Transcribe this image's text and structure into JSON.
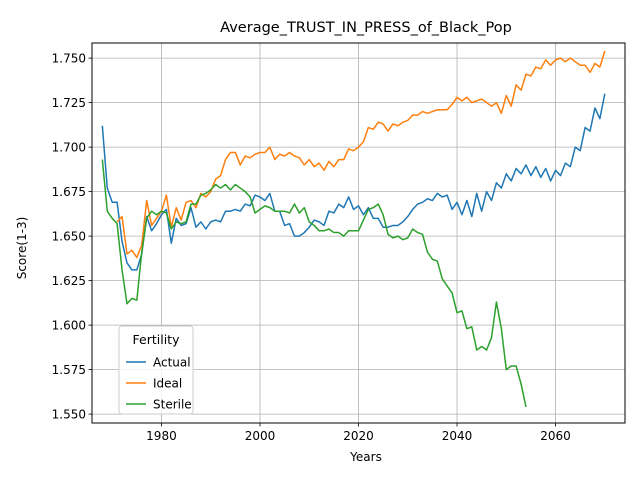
{
  "chart_data": {
    "type": "line",
    "title": "Average_TRUST_IN_PRESS_of_Black_Pop",
    "xlabel": "Years",
    "ylabel": "Score(1-3)",
    "xlim": [
      1965.9,
      2074.1
    ],
    "ylim": [
      1.545,
      1.7585
    ],
    "x_ticks": [
      1980,
      2000,
      2020,
      2040,
      2060
    ],
    "y_ticks": [
      1.55,
      1.575,
      1.6,
      1.625,
      1.65,
      1.675,
      1.7,
      1.725,
      1.75
    ],
    "grid": true,
    "legend": {
      "title": "Fertility",
      "position": "lower-left"
    },
    "series": [
      {
        "name": "Actual",
        "color": "#1f77b4",
        "points": [
          [
            1968,
            1.712
          ],
          [
            1969,
            1.677
          ],
          [
            1970,
            1.669
          ],
          [
            1971,
            1.669
          ],
          [
            1972,
            1.647
          ],
          [
            1973,
            1.635
          ],
          [
            1974,
            1.631
          ],
          [
            1975,
            1.631
          ],
          [
            1976,
            1.64
          ],
          [
            1977,
            1.661
          ],
          [
            1978,
            1.653
          ],
          [
            1979,
            1.657
          ],
          [
            1980,
            1.662
          ],
          [
            1981,
            1.665
          ],
          [
            1982,
            1.646
          ],
          [
            1983,
            1.66
          ],
          [
            1984,
            1.656
          ],
          [
            1985,
            1.657
          ],
          [
            1986,
            1.666
          ],
          [
            1987,
            1.655
          ],
          [
            1988,
            1.658
          ],
          [
            1989,
            1.654
          ],
          [
            1990,
            1.658
          ],
          [
            1991,
            1.659
          ],
          [
            1992,
            1.658
          ],
          [
            1993,
            1.664
          ],
          [
            1994,
            1.664
          ],
          [
            1995,
            1.665
          ],
          [
            1996,
            1.664
          ],
          [
            1997,
            1.668
          ],
          [
            1998,
            1.667
          ],
          [
            1999,
            1.673
          ],
          [
            2000,
            1.672
          ],
          [
            2001,
            1.67
          ],
          [
            2002,
            1.674
          ],
          [
            2003,
            1.664
          ],
          [
            2004,
            1.664
          ],
          [
            2005,
            1.656
          ],
          [
            2006,
            1.657
          ],
          [
            2007,
            1.65
          ],
          [
            2008,
            1.65
          ],
          [
            2009,
            1.652
          ],
          [
            2010,
            1.655
          ],
          [
            2011,
            1.659
          ],
          [
            2012,
            1.658
          ],
          [
            2013,
            1.656
          ],
          [
            2014,
            1.664
          ],
          [
            2015,
            1.663
          ],
          [
            2016,
            1.668
          ],
          [
            2017,
            1.666
          ],
          [
            2018,
            1.672
          ],
          [
            2019,
            1.665
          ],
          [
            2020,
            1.667
          ],
          [
            2021,
            1.662
          ],
          [
            2022,
            1.666
          ],
          [
            2023,
            1.66
          ],
          [
            2024,
            1.66
          ],
          [
            2025,
            1.655
          ],
          [
            2026,
            1.655
          ],
          [
            2027,
            1.656
          ],
          [
            2028,
            1.656
          ],
          [
            2029,
            1.658
          ],
          [
            2030,
            1.661
          ],
          [
            2031,
            1.665
          ],
          [
            2032,
            1.668
          ],
          [
            2033,
            1.669
          ],
          [
            2034,
            1.671
          ],
          [
            2035,
            1.67
          ],
          [
            2036,
            1.674
          ],
          [
            2037,
            1.672
          ],
          [
            2038,
            1.673
          ],
          [
            2039,
            1.665
          ],
          [
            2040,
            1.669
          ],
          [
            2041,
            1.662
          ],
          [
            2042,
            1.67
          ],
          [
            2043,
            1.661
          ],
          [
            2044,
            1.674
          ],
          [
            2045,
            1.664
          ],
          [
            2046,
            1.675
          ],
          [
            2047,
            1.67
          ],
          [
            2048,
            1.68
          ],
          [
            2049,
            1.677
          ],
          [
            2050,
            1.685
          ],
          [
            2051,
            1.681
          ],
          [
            2052,
            1.688
          ],
          [
            2053,
            1.685
          ],
          [
            2054,
            1.69
          ],
          [
            2055,
            1.684
          ],
          [
            2056,
            1.689
          ],
          [
            2057,
            1.683
          ],
          [
            2058,
            1.688
          ],
          [
            2059,
            1.681
          ],
          [
            2060,
            1.687
          ],
          [
            2061,
            1.684
          ],
          [
            2062,
            1.691
          ],
          [
            2063,
            1.689
          ],
          [
            2064,
            1.7
          ],
          [
            2065,
            1.698
          ],
          [
            2066,
            1.711
          ],
          [
            2067,
            1.709
          ],
          [
            2068,
            1.722
          ],
          [
            2069,
            1.716
          ],
          [
            2070,
            1.73
          ]
        ]
      },
      {
        "name": "Ideal",
        "color": "#ff7f0e",
        "points": [
          [
            1971,
            1.658
          ],
          [
            1972,
            1.661
          ],
          [
            1973,
            1.64
          ],
          [
            1974,
            1.642
          ],
          [
            1975,
            1.638
          ],
          [
            1976,
            1.645
          ],
          [
            1977,
            1.67
          ],
          [
            1978,
            1.656
          ],
          [
            1979,
            1.66
          ],
          [
            1980,
            1.664
          ],
          [
            1981,
            1.673
          ],
          [
            1982,
            1.655
          ],
          [
            1983,
            1.666
          ],
          [
            1984,
            1.659
          ],
          [
            1985,
            1.669
          ],
          [
            1986,
            1.67
          ],
          [
            1987,
            1.666
          ],
          [
            1988,
            1.674
          ],
          [
            1989,
            1.672
          ],
          [
            1990,
            1.675
          ],
          [
            1991,
            1.682
          ],
          [
            1992,
            1.684
          ],
          [
            1993,
            1.693
          ],
          [
            1994,
            1.697
          ],
          [
            1995,
            1.697
          ],
          [
            1996,
            1.69
          ],
          [
            1997,
            1.695
          ],
          [
            1998,
            1.694
          ],
          [
            1999,
            1.696
          ],
          [
            2000,
            1.697
          ],
          [
            2001,
            1.697
          ],
          [
            2002,
            1.7
          ],
          [
            2003,
            1.693
          ],
          [
            2004,
            1.696
          ],
          [
            2005,
            1.695
          ],
          [
            2006,
            1.697
          ],
          [
            2007,
            1.695
          ],
          [
            2008,
            1.694
          ],
          [
            2009,
            1.69
          ],
          [
            2010,
            1.693
          ],
          [
            2011,
            1.689
          ],
          [
            2012,
            1.691
          ],
          [
            2013,
            1.687
          ],
          [
            2014,
            1.692
          ],
          [
            2015,
            1.689
          ],
          [
            2016,
            1.693
          ],
          [
            2017,
            1.693
          ],
          [
            2018,
            1.699
          ],
          [
            2019,
            1.698
          ],
          [
            2020,
            1.7
          ],
          [
            2021,
            1.703
          ],
          [
            2022,
            1.711
          ],
          [
            2023,
            1.71
          ],
          [
            2024,
            1.714
          ],
          [
            2025,
            1.713
          ],
          [
            2026,
            1.709
          ],
          [
            2027,
            1.713
          ],
          [
            2028,
            1.712
          ],
          [
            2029,
            1.714
          ],
          [
            2030,
            1.715
          ],
          [
            2031,
            1.718
          ],
          [
            2032,
            1.718
          ],
          [
            2033,
            1.72
          ],
          [
            2034,
            1.719
          ],
          [
            2035,
            1.72
          ],
          [
            2036,
            1.721
          ],
          [
            2037,
            1.721
          ],
          [
            2038,
            1.721
          ],
          [
            2039,
            1.724
          ],
          [
            2040,
            1.728
          ],
          [
            2041,
            1.726
          ],
          [
            2042,
            1.728
          ],
          [
            2043,
            1.725
          ],
          [
            2044,
            1.726
          ],
          [
            2045,
            1.727
          ],
          [
            2046,
            1.725
          ],
          [
            2047,
            1.723
          ],
          [
            2048,
            1.725
          ],
          [
            2049,
            1.719
          ],
          [
            2050,
            1.729
          ],
          [
            2051,
            1.723
          ],
          [
            2052,
            1.735
          ],
          [
            2053,
            1.732
          ],
          [
            2054,
            1.741
          ],
          [
            2055,
            1.74
          ],
          [
            2056,
            1.745
          ],
          [
            2057,
            1.744
          ],
          [
            2058,
            1.749
          ],
          [
            2059,
            1.746
          ],
          [
            2060,
            1.749
          ],
          [
            2061,
            1.75
          ],
          [
            2062,
            1.748
          ],
          [
            2063,
            1.75
          ],
          [
            2064,
            1.748
          ],
          [
            2065,
            1.746
          ],
          [
            2066,
            1.746
          ],
          [
            2067,
            1.742
          ],
          [
            2068,
            1.747
          ],
          [
            2069,
            1.745
          ],
          [
            2070,
            1.754
          ]
        ]
      },
      {
        "name": "Sterile",
        "color": "#2ca02c",
        "points": [
          [
            1968,
            1.693
          ],
          [
            1969,
            1.664
          ],
          [
            1970,
            1.66
          ],
          [
            1971,
            1.657
          ],
          [
            1972,
            1.631
          ],
          [
            1973,
            1.612
          ],
          [
            1974,
            1.615
          ],
          [
            1975,
            1.614
          ],
          [
            1976,
            1.641
          ],
          [
            1977,
            1.66
          ],
          [
            1978,
            1.664
          ],
          [
            1979,
            1.662
          ],
          [
            1980,
            1.664
          ],
          [
            1981,
            1.663
          ],
          [
            1982,
            1.654
          ],
          [
            1983,
            1.658
          ],
          [
            1984,
            1.657
          ],
          [
            1985,
            1.658
          ],
          [
            1986,
            1.668
          ],
          [
            1987,
            1.668
          ],
          [
            1988,
            1.673
          ],
          [
            1989,
            1.674
          ],
          [
            1990,
            1.676
          ],
          [
            1991,
            1.679
          ],
          [
            1992,
            1.677
          ],
          [
            1993,
            1.679
          ],
          [
            1994,
            1.676
          ],
          [
            1995,
            1.679
          ],
          [
            1996,
            1.677
          ],
          [
            1997,
            1.675
          ],
          [
            1998,
            1.672
          ],
          [
            1999,
            1.663
          ],
          [
            2000,
            1.665
          ],
          [
            2001,
            1.667
          ],
          [
            2002,
            1.666
          ],
          [
            2003,
            1.664
          ],
          [
            2004,
            1.664
          ],
          [
            2005,
            1.664
          ],
          [
            2006,
            1.663
          ],
          [
            2007,
            1.668
          ],
          [
            2008,
            1.663
          ],
          [
            2009,
            1.666
          ],
          [
            2010,
            1.658
          ],
          [
            2011,
            1.656
          ],
          [
            2012,
            1.653
          ],
          [
            2013,
            1.653
          ],
          [
            2014,
            1.654
          ],
          [
            2015,
            1.652
          ],
          [
            2016,
            1.652
          ],
          [
            2017,
            1.65
          ],
          [
            2018,
            1.653
          ],
          [
            2019,
            1.653
          ],
          [
            2020,
            1.653
          ],
          [
            2021,
            1.659
          ],
          [
            2022,
            1.665
          ],
          [
            2023,
            1.666
          ],
          [
            2024,
            1.668
          ],
          [
            2025,
            1.662
          ],
          [
            2026,
            1.651
          ],
          [
            2027,
            1.649
          ],
          [
            2028,
            1.65
          ],
          [
            2029,
            1.648
          ],
          [
            2030,
            1.649
          ],
          [
            2031,
            1.654
          ],
          [
            2032,
            1.652
          ],
          [
            2033,
            1.651
          ],
          [
            2034,
            1.641
          ],
          [
            2035,
            1.637
          ],
          [
            2036,
            1.636
          ],
          [
            2037,
            1.626
          ],
          [
            2038,
            1.622
          ],
          [
            2039,
            1.618
          ],
          [
            2040,
            1.607
          ],
          [
            2041,
            1.608
          ],
          [
            2042,
            1.598
          ],
          [
            2043,
            1.599
          ],
          [
            2044,
            1.586
          ],
          [
            2045,
            1.588
          ],
          [
            2046,
            1.586
          ],
          [
            2047,
            1.593
          ],
          [
            2048,
            1.613
          ],
          [
            2049,
            1.598
          ],
          [
            2050,
            1.575
          ],
          [
            2051,
            1.577
          ],
          [
            2052,
            1.577
          ],
          [
            2053,
            1.567
          ],
          [
            2054,
            1.554
          ]
        ]
      }
    ]
  }
}
